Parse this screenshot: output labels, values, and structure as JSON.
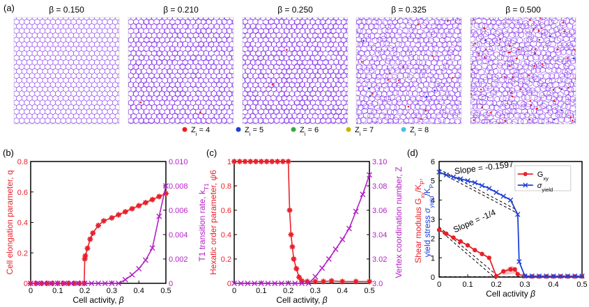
{
  "panel_a": {
    "label": "(a)",
    "betas": [
      "β = 0.150",
      "β = 0.210",
      "β = 0.250",
      "β = 0.325",
      "β = 0.500"
    ],
    "legend": [
      {
        "text": "Z_i = 4",
        "color": "#e8202a"
      },
      {
        "text": "Z_i = 5",
        "color": "#1f3fd6"
      },
      {
        "text": "Z_i = 6",
        "color": "#3aa845"
      },
      {
        "text": "Z_i = 7",
        "color": "#c8b400"
      },
      {
        "text": "Z_i = 8",
        "color": "#46c3e0"
      }
    ],
    "edge_color": "#8a3df0"
  },
  "chart_data": [
    {
      "panel": "(b)",
      "type": "line",
      "xlabel": "Cell activity, β",
      "xlim": [
        0,
        0.5
      ],
      "xticks": [
        "0",
        "0.1",
        "0.2",
        "0.3",
        "0.4",
        "0.5"
      ],
      "ylabel_left": "Cell elongation parameter, q",
      "ylim_left": [
        0,
        0.8
      ],
      "yticks_left": [
        "0",
        "0.2",
        "0.4",
        "0.6",
        "0.8"
      ],
      "ylabel_right": "T1 transition rate, k_T1",
      "ylim_right": [
        0,
        0.01
      ],
      "yticks_right": [
        "0",
        "0.002",
        "0.004",
        "0.006",
        "0.008",
        "0.010"
      ],
      "series": [
        {
          "axis": "left",
          "color": "#e8202a",
          "x": [
            0,
            0.02,
            0.04,
            0.06,
            0.08,
            0.1,
            0.12,
            0.14,
            0.16,
            0.18,
            0.198,
            0.2,
            0.202,
            0.21,
            0.22,
            0.23,
            0.25,
            0.27,
            0.3,
            0.325,
            0.35,
            0.375,
            0.4,
            0.425,
            0.45,
            0.475,
            0.5
          ],
          "y": [
            0,
            0,
            0,
            0,
            0,
            0,
            0,
            0,
            0,
            0,
            0,
            0.16,
            0.18,
            0.23,
            0.29,
            0.33,
            0.38,
            0.41,
            0.43,
            0.45,
            0.47,
            0.49,
            0.51,
            0.53,
            0.55,
            0.57,
            0.59
          ]
        },
        {
          "axis": "right",
          "color": "#b31fc4",
          "x": [
            0,
            0.025,
            0.05,
            0.075,
            0.1,
            0.125,
            0.15,
            0.175,
            0.2,
            0.225,
            0.25,
            0.275,
            0.3,
            0.325,
            0.35,
            0.375,
            0.4,
            0.425,
            0.45,
            0.475,
            0.5
          ],
          "y": [
            0,
            0,
            0,
            0,
            0,
            0,
            0,
            0,
            0,
            0,
            0,
            0,
            0,
            0,
            0.0003,
            0.0007,
            0.0012,
            0.0019,
            0.0029,
            0.0055,
            0.008
          ]
        }
      ]
    },
    {
      "panel": "(c)",
      "type": "line",
      "xlabel": "Cell activity, β",
      "xlim": [
        0,
        0.5
      ],
      "xticks": [
        "0",
        "0.1",
        "0.2",
        "0.3",
        "0.4",
        "0.5"
      ],
      "ylabel_left": "Hexatic order parameter, ψ6",
      "ylim_left": [
        0,
        1
      ],
      "yticks_left": [
        "0",
        "0.2",
        "0.4",
        "0.6",
        "0.8",
        "1"
      ],
      "ylabel_right": "Vertex coordination number, Z",
      "ylim_right": [
        3.0,
        3.1
      ],
      "yticks_right": [
        "3.0",
        "3.02",
        "3.04",
        "3.06",
        "3.08",
        "3.10"
      ],
      "series": [
        {
          "axis": "left",
          "color": "#e8202a",
          "x": [
            0,
            0.02,
            0.04,
            0.06,
            0.08,
            0.1,
            0.12,
            0.14,
            0.16,
            0.18,
            0.2,
            0.205,
            0.21,
            0.215,
            0.22,
            0.23,
            0.24,
            0.25,
            0.27,
            0.3,
            0.33,
            0.36,
            0.4,
            0.45,
            0.5
          ],
          "y": [
            1,
            1,
            1,
            1,
            1,
            1,
            1,
            1,
            1,
            1,
            1,
            0.6,
            0.4,
            0.3,
            0.2,
            0.12,
            0.05,
            0.02,
            0.015,
            0.015,
            0.015,
            0.02,
            0.015,
            0.015,
            0.015
          ]
        },
        {
          "axis": "right",
          "color": "#b31fc4",
          "x": [
            0,
            0.025,
            0.05,
            0.075,
            0.1,
            0.125,
            0.15,
            0.175,
            0.2,
            0.225,
            0.25,
            0.275,
            0.3,
            0.325,
            0.35,
            0.375,
            0.4,
            0.425,
            0.45,
            0.475,
            0.5
          ],
          "y": [
            3.0,
            3.0,
            3.0,
            3.0,
            3.0,
            3.0,
            3.0,
            3.0,
            3.0,
            3.0,
            3.0,
            3.0,
            3.0055,
            3.0125,
            3.02,
            3.028,
            3.036,
            3.045,
            3.059,
            3.073,
            3.089
          ]
        }
      ]
    },
    {
      "panel": "(d)",
      "type": "line",
      "xlabel": "Cell activity β",
      "xlim": [
        0,
        0.5
      ],
      "xticks": [
        "0",
        "0.1",
        "0.2",
        "0.3",
        "0.4",
        "0.5"
      ],
      "ylabel_red": "Shear modulus G_xy/K_P,",
      "ylabel_blue": "yield stress σ_yield/K_P",
      "ylim": [
        0,
        6
      ],
      "yticks": [
        "0",
        "1",
        "2",
        "3",
        "4",
        "5",
        "6"
      ],
      "legend": [
        "G_xy",
        "σ_yield"
      ],
      "annotations": [
        "Slope = -0.1597",
        "Slope = -1/4"
      ],
      "series": [
        {
          "name": "G_xy",
          "color": "#e8202a",
          "x": [
            0,
            0.025,
            0.05,
            0.075,
            0.1,
            0.125,
            0.15,
            0.175,
            0.2,
            0.225,
            0.25,
            0.265,
            0.275,
            0.3,
            0.325,
            0.35,
            0.375,
            0.4,
            0.425,
            0.45,
            0.475,
            0.5
          ],
          "y": [
            2.45,
            2.25,
            2.05,
            1.85,
            1.65,
            1.4,
            1.2,
            1.0,
            0.05,
            0.3,
            0.4,
            0.4,
            0.15,
            0.05,
            0.03,
            0.03,
            0.03,
            0.03,
            0.03,
            0.03,
            0.03,
            0.03
          ]
        },
        {
          "name": "σ_yield",
          "color": "#1f3fd6",
          "x": [
            0,
            0.025,
            0.05,
            0.075,
            0.1,
            0.125,
            0.15,
            0.175,
            0.2,
            0.225,
            0.25,
            0.275,
            0.28,
            0.3,
            0.325,
            0.35,
            0.375,
            0.4,
            0.425,
            0.45,
            0.475,
            0.5
          ],
          "y": [
            5.45,
            5.3,
            5.2,
            5.1,
            5.0,
            4.9,
            4.75,
            4.6,
            4.4,
            4.2,
            4.0,
            3.25,
            0.8,
            0.05,
            0.05,
            0.05,
            0.05,
            0.05,
            0.05,
            0.05,
            0.05,
            0.05
          ]
        }
      ]
    }
  ]
}
